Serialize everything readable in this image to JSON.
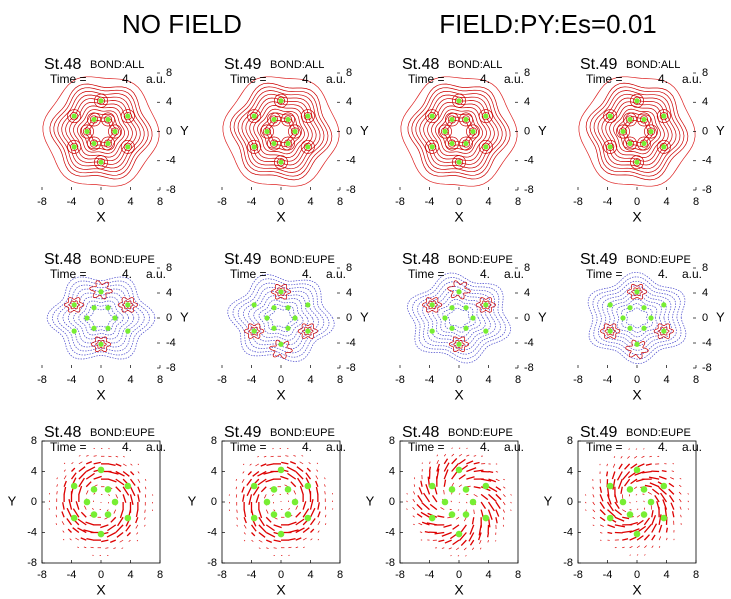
{
  "headers": [
    "NO FIELD",
    "FIELD:PY:Es=0.01"
  ],
  "axes": {
    "xlabel": "X",
    "ylabel": "Y",
    "xlim": [
      -8,
      8
    ],
    "ylim": [
      -8,
      8
    ],
    "xticks": [
      -8,
      -4,
      0,
      4,
      8
    ],
    "yticks": [
      -8,
      -4,
      0,
      4,
      8
    ]
  },
  "panels": [
    {
      "state": "St.48",
      "bond": "BOND:ALL",
      "time_label": "Time =",
      "time": "4.",
      "unit": "a.u."
    },
    {
      "state": "St.49",
      "bond": "BOND:ALL",
      "time_label": "Time =",
      "time": "4.",
      "unit": "a.u."
    },
    {
      "state": "St.48",
      "bond": "BOND:ALL",
      "time_label": "Time =",
      "time": "4.",
      "unit": "a.u."
    },
    {
      "state": "St.49",
      "bond": "BOND:ALL",
      "time_label": "Time =",
      "time": "4.",
      "unit": "a.u."
    },
    {
      "state": "St.48",
      "bond": "BOND:EUPE",
      "time_label": "Time =",
      "time": "4.",
      "unit": "a.u."
    },
    {
      "state": "St.49",
      "bond": "BOND:EUPE",
      "time_label": "Time =",
      "time": "4.",
      "unit": "a.u."
    },
    {
      "state": "St.48",
      "bond": "BOND:EUPE",
      "time_label": "Time =",
      "time": "4.",
      "unit": "a.u."
    },
    {
      "state": "St.49",
      "bond": "BOND:EUPE",
      "time_label": "Time =",
      "time": "4.",
      "unit": "a.u."
    },
    {
      "state": "St.48",
      "bond": "BOND:EUPE",
      "time_label": "Time =",
      "time": "4.",
      "unit": "a.u."
    },
    {
      "state": "St.49",
      "bond": "BOND:EUPE",
      "time_label": "Time =",
      "time": "4.",
      "unit": "a.u."
    },
    {
      "state": "St.48",
      "bond": "BOND:EUPE",
      "time_label": "Time =",
      "time": "4.",
      "unit": "a.u."
    },
    {
      "state": "St.49",
      "bond": "BOND:EUPE",
      "time_label": "Time =",
      "time": "4.",
      "unit": "a.u."
    }
  ]
}
